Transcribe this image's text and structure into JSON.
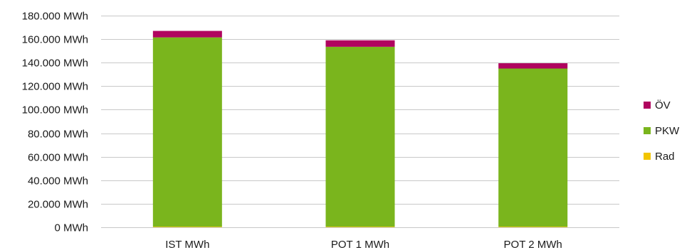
{
  "chart_data": {
    "type": "bar",
    "stacked": true,
    "categories": [
      "IST  MWh",
      "POT  1  MWh",
      "POT  2  MWh"
    ],
    "series": [
      {
        "name": "Rad",
        "color": "#f2c500",
        "values": [
          500,
          500,
          500
        ]
      },
      {
        "name": "PKW",
        "color": "#7ab51d",
        "values": [
          161000,
          153000,
          134500
        ]
      },
      {
        "name": "ÖV",
        "color": "#b0045f",
        "values": [
          5500,
          5500,
          4500
        ]
      }
    ],
    "y_ticks": [
      "0 MWh",
      "20.000 MWh",
      "40.000 MWh",
      "60.000 MWh",
      "80.000 MWh",
      "100.000 MWh",
      "120.000 MWh",
      "140.000 MWh",
      "160.000 MWh",
      "180.000 MWh"
    ],
    "ylim": [
      0,
      180000
    ],
    "grid": true,
    "legend_position": "right",
    "legend_order": [
      "ÖV",
      "PKW",
      "Rad"
    ]
  }
}
